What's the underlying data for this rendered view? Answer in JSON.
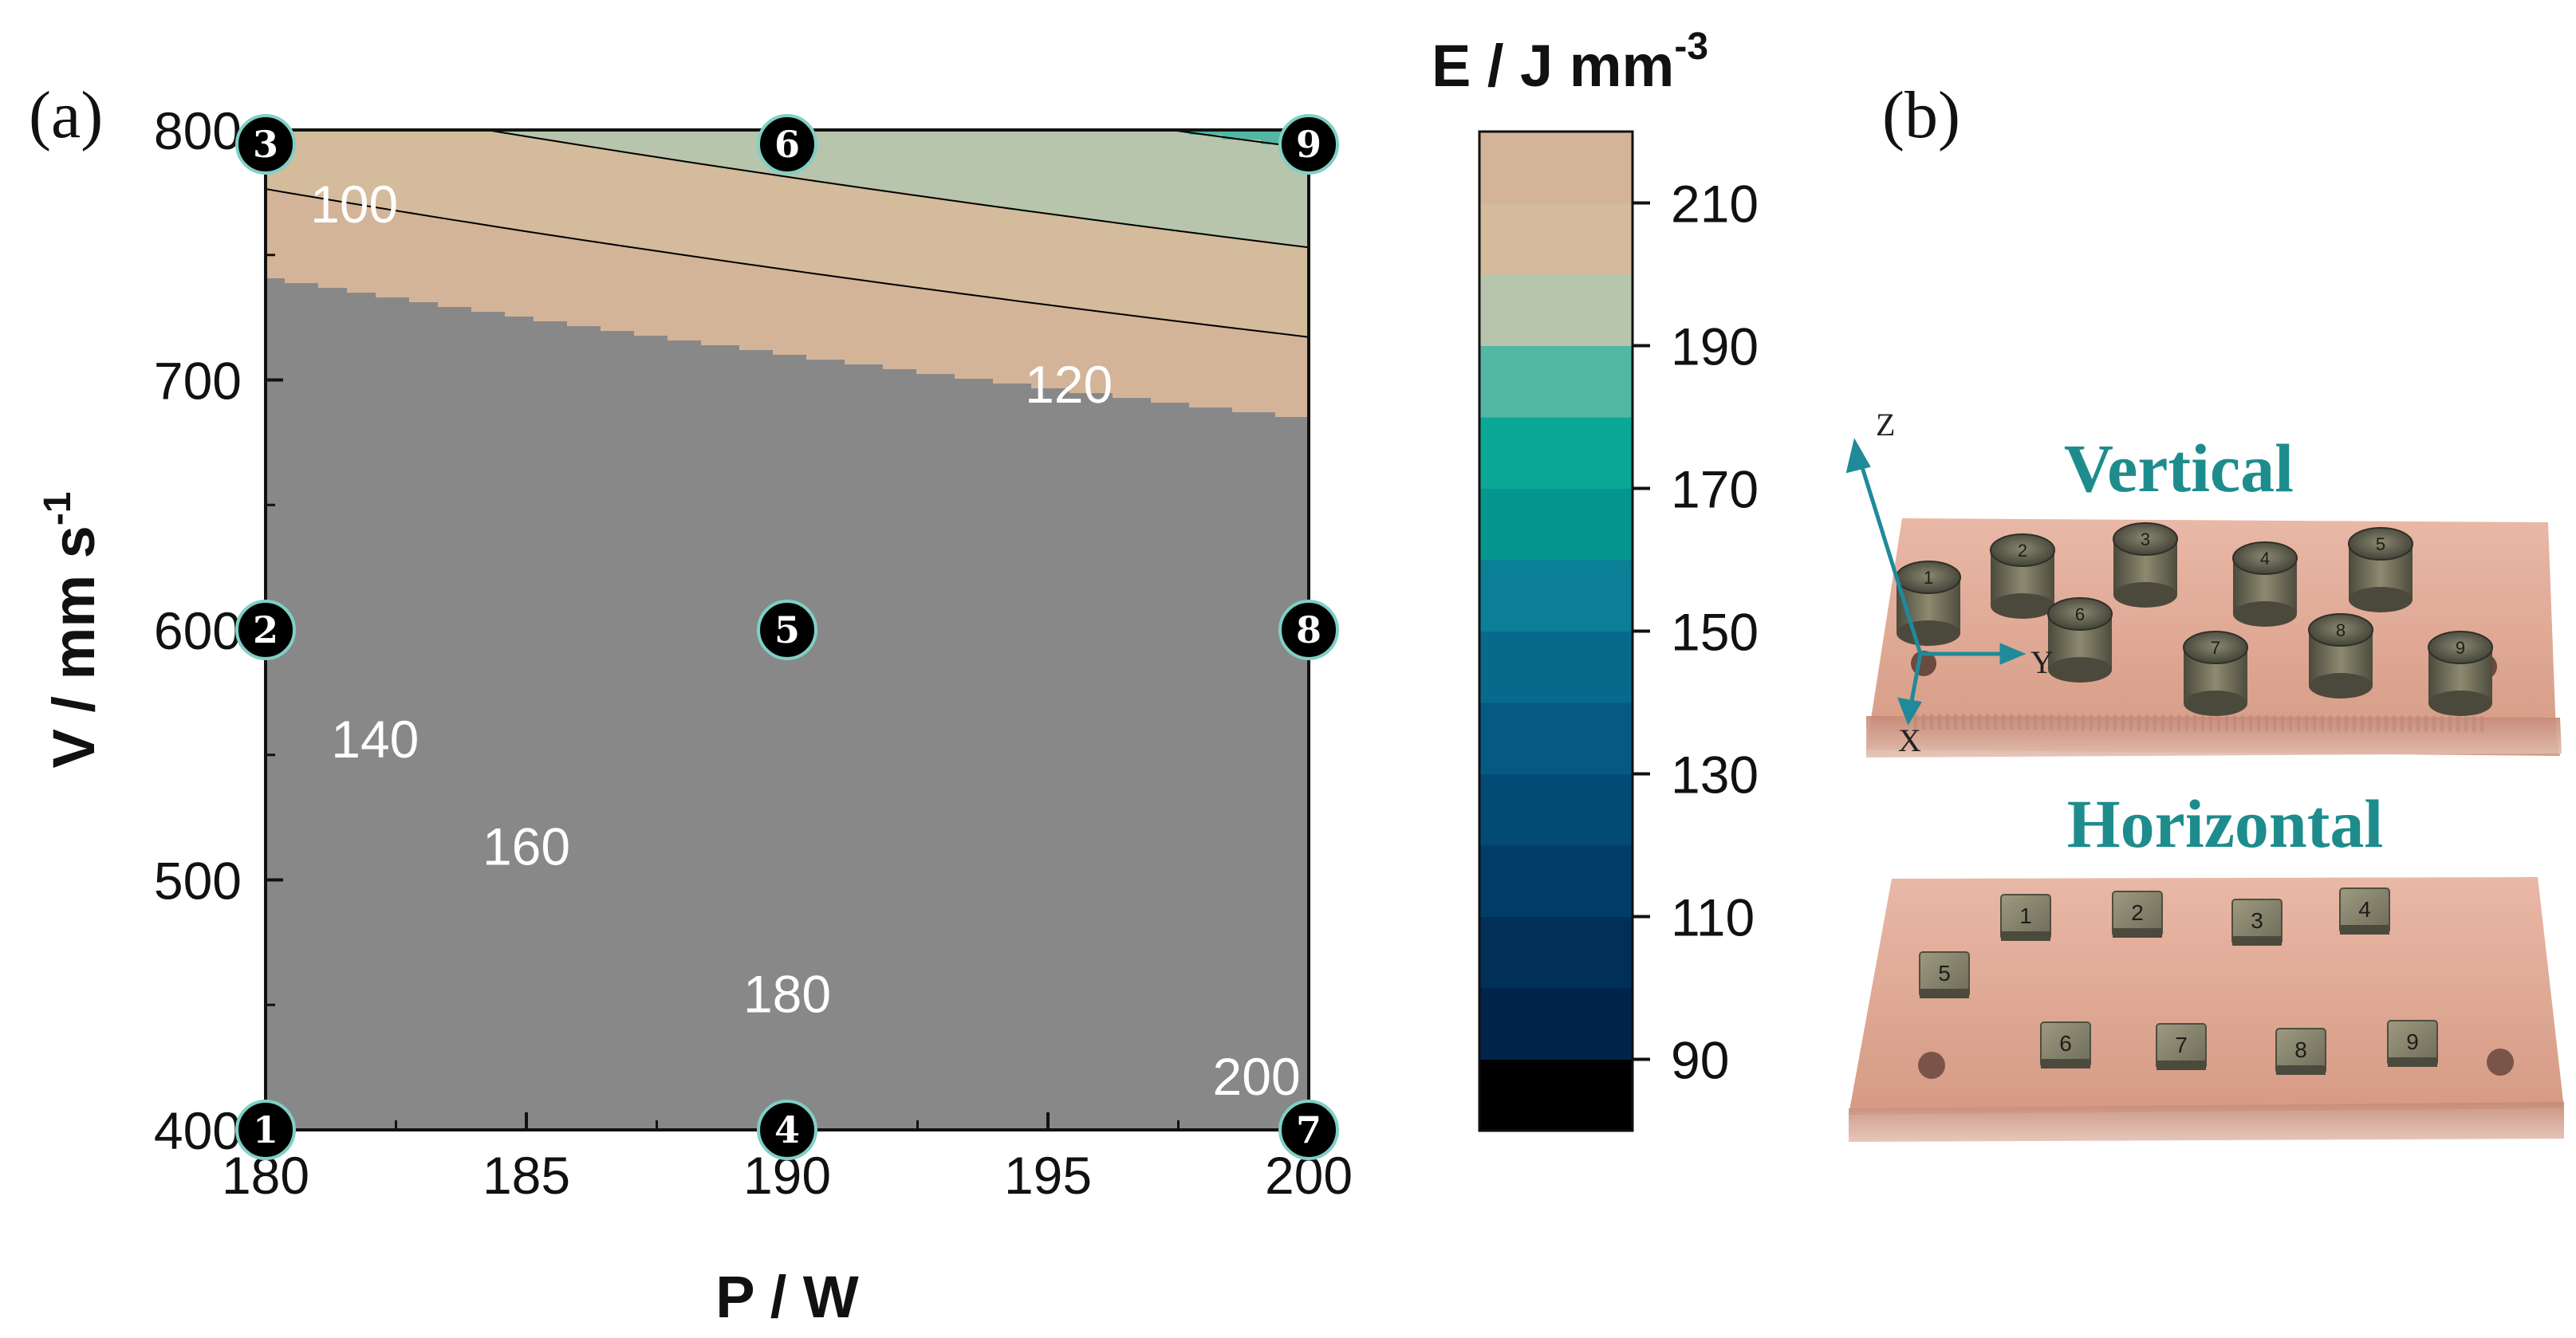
{
  "panel_a": {
    "label": "(a)"
  },
  "panel_b": {
    "label": "(b)",
    "vertical_title": "Vertical",
    "horizontal_title": "Horizontal",
    "axis_letters": {
      "z": "Z",
      "y": "Y",
      "x": "X"
    },
    "sample_marks_vertical": [
      "1",
      "2",
      "3",
      "4",
      "5",
      "6",
      "7",
      "8",
      "9"
    ],
    "sample_marks_horizontal": [
      "1",
      "2",
      "3",
      "4",
      "5",
      "6",
      "7",
      "8",
      "9"
    ]
  },
  "chart_data": {
    "type": "contour",
    "xlabel": "P / W",
    "ylabel": "V / mm s",
    "ylabel_sup": "-1",
    "xlim": [
      180,
      200
    ],
    "ylim": [
      400,
      800
    ],
    "xticks": [
      180,
      185,
      190,
      195,
      200
    ],
    "yticks": [
      400,
      500,
      600,
      700,
      800
    ],
    "colorbar": {
      "title": "E / J mm",
      "title_sup": "-3",
      "range": [
        80,
        220
      ],
      "ticks": [
        90,
        110,
        130,
        150,
        170,
        190,
        210
      ],
      "levels": [
        80,
        90,
        100,
        110,
        120,
        130,
        140,
        150,
        160,
        170,
        180,
        190,
        200,
        210,
        220
      ],
      "colors": [
        "#000000",
        "#00234a",
        "#002f58",
        "#003d67",
        "#014b76",
        "#045a83",
        "#076a8d",
        "#0b7f95",
        "#05958f",
        "#0aa895",
        "#52b7a3",
        "#b6c5ac",
        "#d3bb9c",
        "#d3b498",
        "#888888"
      ]
    },
    "contour_labels": [
      {
        "text": "100",
        "p": 181.7,
        "v": 770
      },
      {
        "text": "120",
        "p": 195.4,
        "v": 698
      },
      {
        "text": "140",
        "p": 182.1,
        "v": 556
      },
      {
        "text": "160",
        "p": 185.0,
        "v": 513
      },
      {
        "text": "180",
        "p": 190.0,
        "v": 454
      },
      {
        "text": "200",
        "p": 199.0,
        "v": 421
      }
    ],
    "points": [
      {
        "id": "1",
        "p": 180,
        "v": 400
      },
      {
        "id": "2",
        "p": 180,
        "v": 600
      },
      {
        "id": "3",
        "p": 180,
        "v": 800
      },
      {
        "id": "4",
        "p": 190,
        "v": 400
      },
      {
        "id": "5",
        "p": 190,
        "v": 600
      },
      {
        "id": "6",
        "p": 190,
        "v": 800
      },
      {
        "id": "7",
        "p": 200,
        "v": 400
      },
      {
        "id": "8",
        "p": 200,
        "v": 600
      },
      {
        "id": "9",
        "p": 200,
        "v": 800
      }
    ]
  }
}
